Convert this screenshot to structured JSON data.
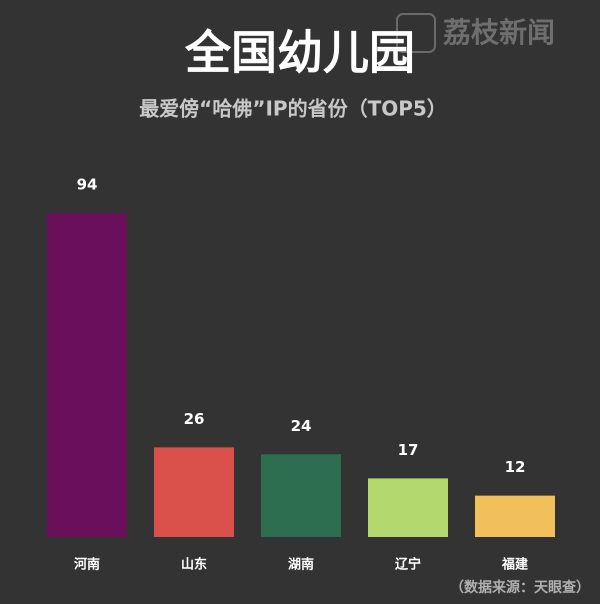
{
  "chart_data": {
    "type": "bar",
    "title": "全国幼儿园",
    "subtitle": "最爱傍“哈佛”IP的省份（TOP5）",
    "source": "（数据来源：天眼查）",
    "watermark": "荔枝新闻",
    "categories": [
      "河南",
      "山东",
      "湖南",
      "辽宁",
      "福建"
    ],
    "values": [
      94,
      26,
      24,
      17,
      12
    ],
    "colors": [
      "#6a105a",
      "#d9514a",
      "#2c6e4f",
      "#b3d96e",
      "#f1c05b"
    ]
  }
}
